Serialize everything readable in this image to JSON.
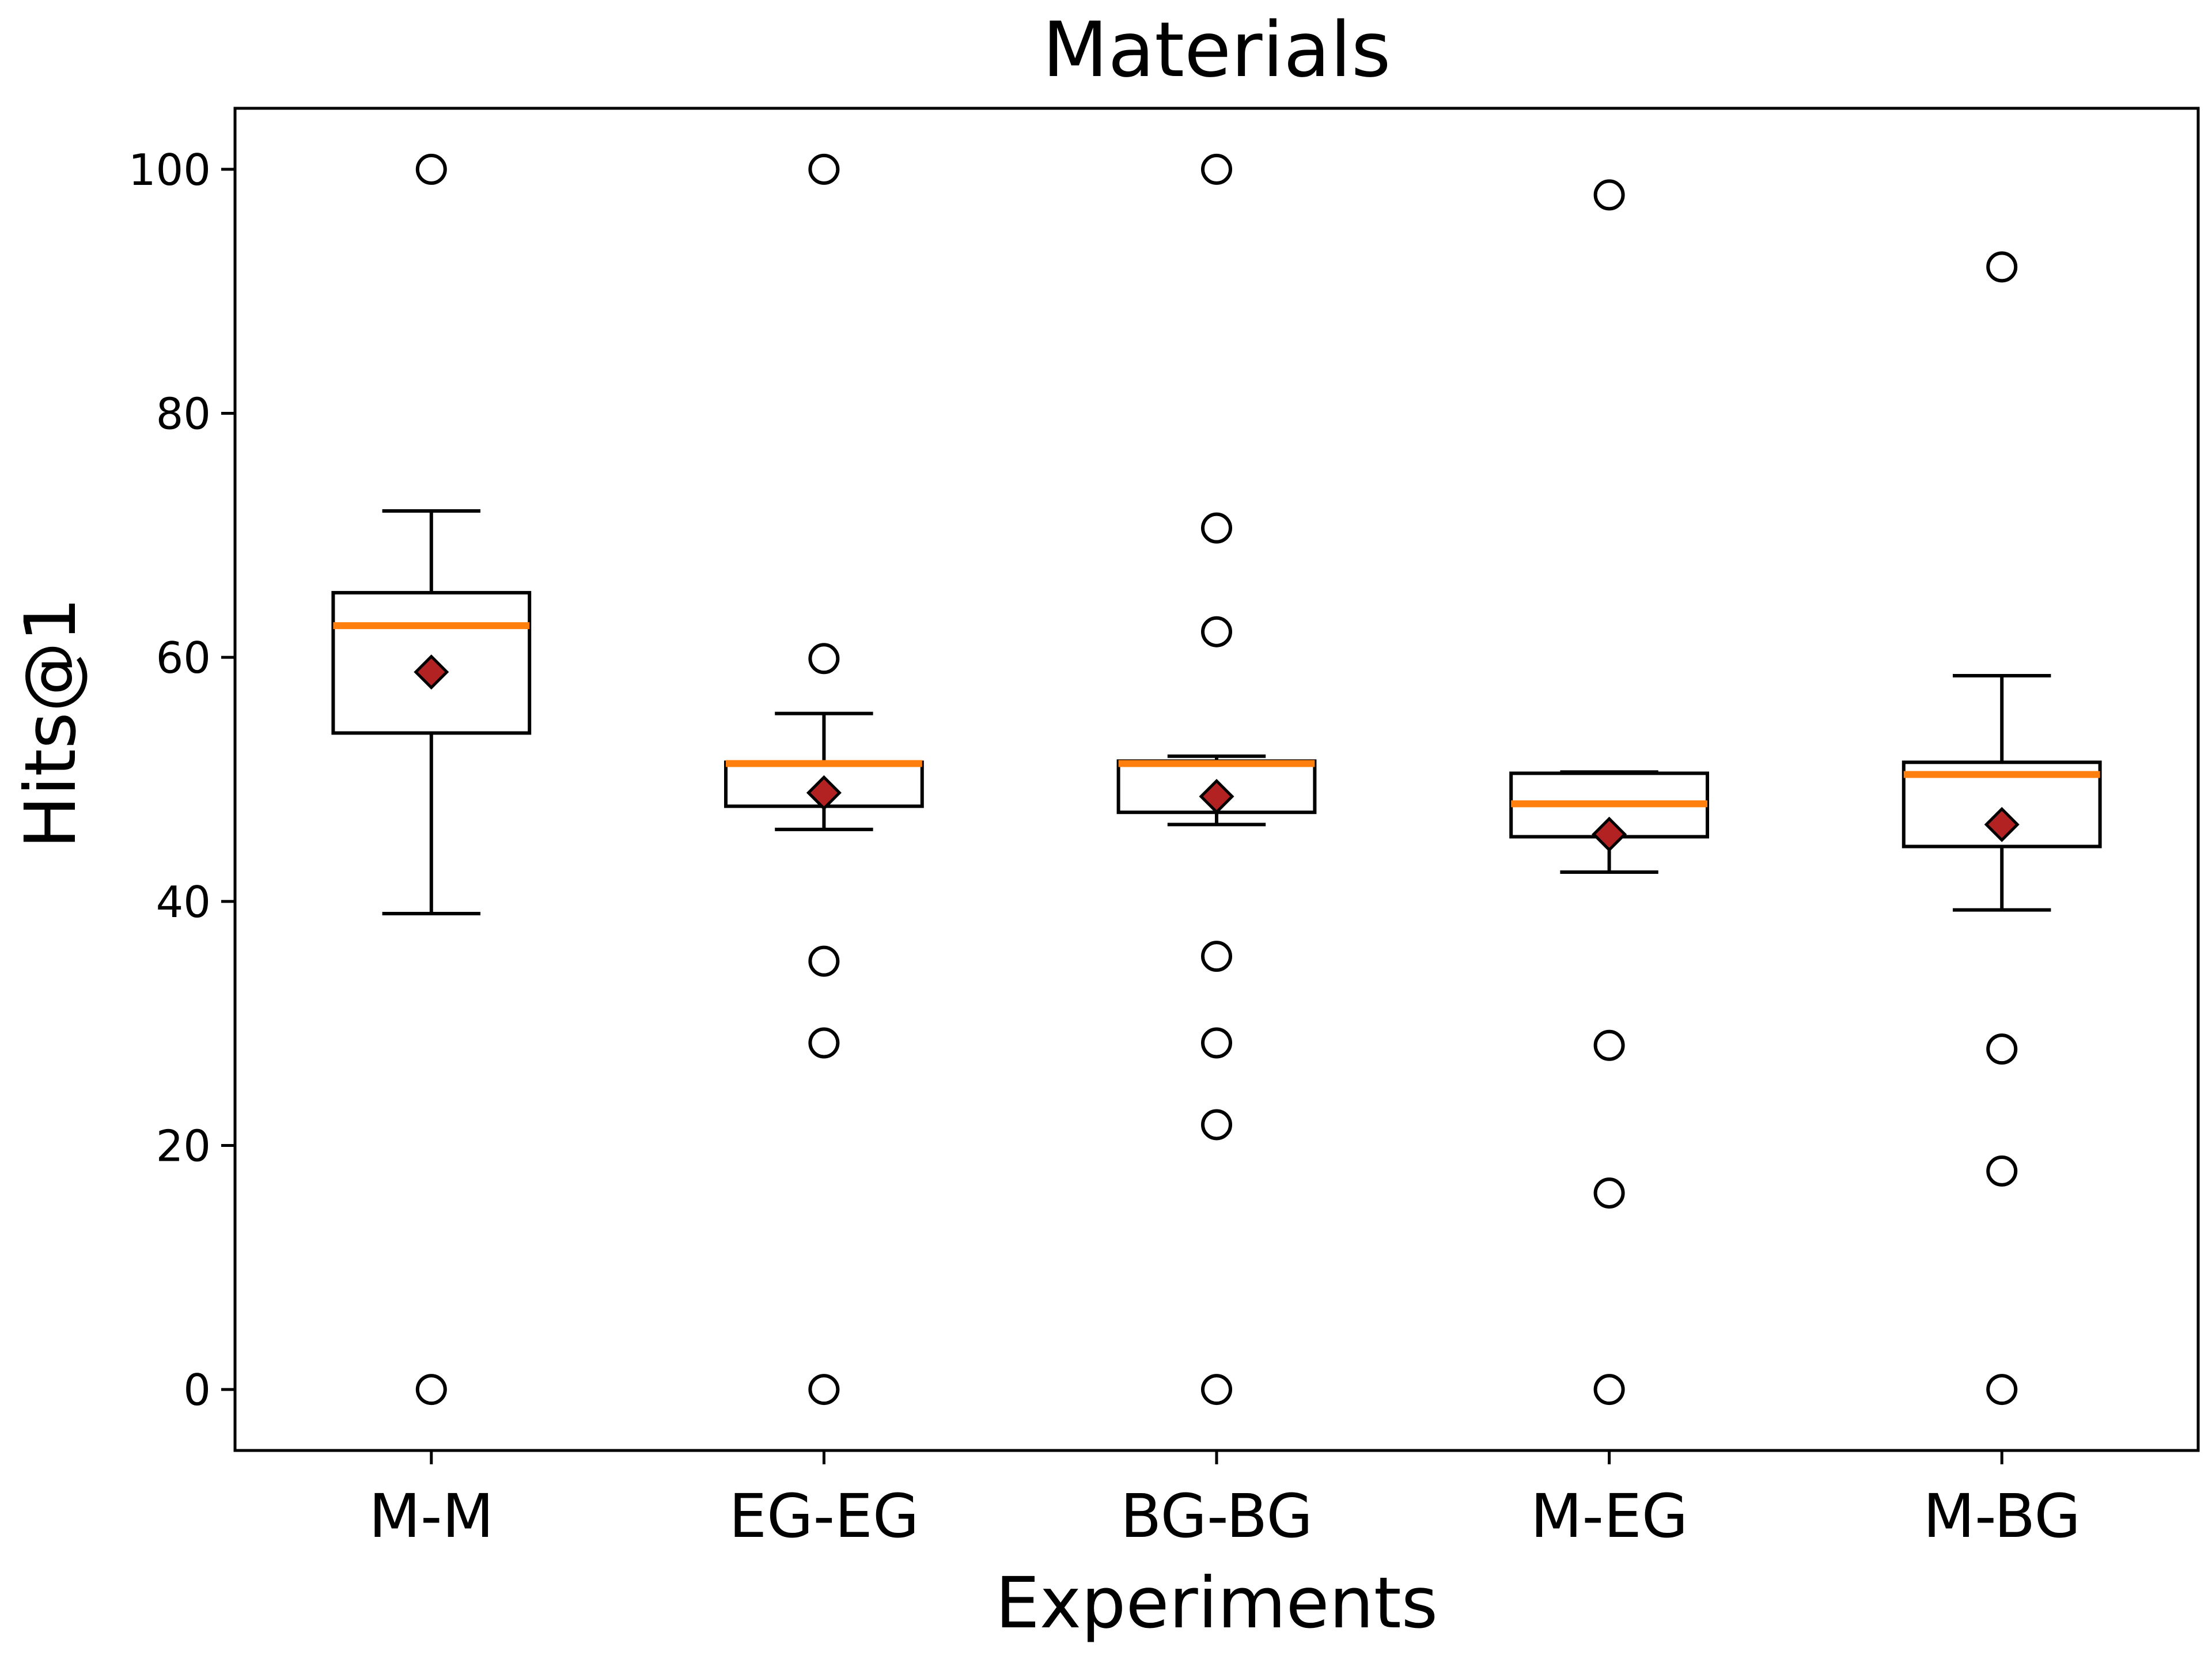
{
  "chart_data": {
    "type": "box",
    "title": "Materials",
    "xlabel": "Experiments",
    "ylabel": "Hits@1",
    "ylim": [
      -5,
      105
    ],
    "yticks": [
      0,
      20,
      40,
      60,
      80,
      100
    ],
    "grid": false,
    "categories": [
      "M-M",
      "EG-EG",
      "BG-BG",
      "M-EG",
      "M-BG"
    ],
    "boxes": [
      {
        "category": "M-M",
        "whisker_low": 39.0,
        "q1": 53.8,
        "median": 62.6,
        "q3": 65.3,
        "whisker_high": 72.0,
        "mean": 58.8,
        "outliers": [
          100.0,
          0.0
        ]
      },
      {
        "category": "EG-EG",
        "whisker_low": 45.9,
        "q1": 47.8,
        "median": 51.3,
        "q3": 51.4,
        "whisker_high": 55.4,
        "mean": 48.9,
        "outliers": [
          100.0,
          59.9,
          35.1,
          28.4,
          0.0
        ]
      },
      {
        "category": "BG-BG",
        "whisker_low": 46.3,
        "q1": 47.3,
        "median": 51.3,
        "q3": 51.5,
        "whisker_high": 51.9,
        "mean": 48.6,
        "outliers": [
          100.0,
          70.6,
          62.1,
          35.5,
          28.4,
          21.7,
          0.0
        ]
      },
      {
        "category": "M-EG",
        "whisker_low": 42.4,
        "q1": 45.3,
        "median": 48.0,
        "q3": 50.5,
        "whisker_high": 50.6,
        "mean": 45.5,
        "outliers": [
          97.9,
          28.2,
          16.1,
          0.0
        ]
      },
      {
        "category": "M-BG",
        "whisker_low": 39.3,
        "q1": 44.5,
        "median": 50.4,
        "q3": 51.4,
        "whisker_high": 58.5,
        "mean": 46.3,
        "outliers": [
          92.0,
          27.9,
          17.9,
          0.0
        ]
      }
    ],
    "colors": {
      "box": "#000000",
      "median": "#ff7f0e",
      "mean_fill": "#b22222",
      "mean_edge": "#000000",
      "outlier_edge": "#000000"
    }
  }
}
